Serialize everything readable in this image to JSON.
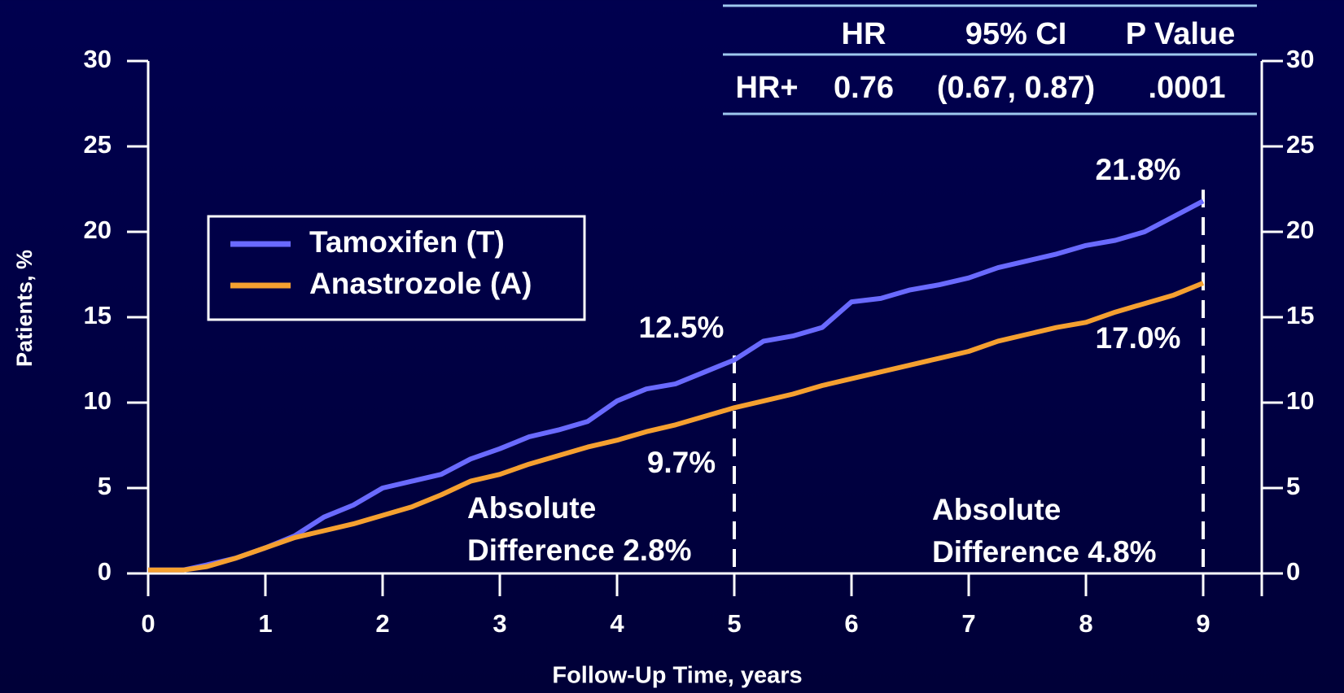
{
  "chart_data": {
    "type": "line",
    "x_label": "Follow-Up Time, years",
    "y_label": "Patients, %",
    "xlim": [
      0,
      9.5
    ],
    "xticks": [
      0,
      1,
      2,
      3,
      4,
      5,
      6,
      7,
      8,
      9
    ],
    "ylim": [
      0,
      30
    ],
    "yticks": [
      0,
      5,
      10,
      15,
      20,
      25,
      30
    ],
    "y2lim": [
      0,
      30
    ],
    "y2ticks": [
      0,
      5,
      10,
      15,
      20,
      25,
      30
    ],
    "x": [
      0,
      0.3,
      0.5,
      0.75,
      1,
      1.25,
      1.5,
      1.75,
      2,
      2.25,
      2.5,
      2.75,
      3,
      3.25,
      3.5,
      3.75,
      4,
      4.25,
      4.5,
      4.75,
      5,
      5.25,
      5.5,
      5.75,
      6,
      6.25,
      6.5,
      6.75,
      7,
      7.25,
      7.5,
      7.75,
      8,
      8.25,
      8.5,
      8.75,
      9
    ],
    "series": [
      {
        "name": "Tamoxifen (T)",
        "color": "#6a6aff",
        "values": [
          0.2,
          0.2,
          0.5,
          0.9,
          1.5,
          2.2,
          3.3,
          4.0,
          5.0,
          5.4,
          5.8,
          6.7,
          7.3,
          8.0,
          8.4,
          8.9,
          10.1,
          10.8,
          11.1,
          11.8,
          12.5,
          13.6,
          13.9,
          14.4,
          15.9,
          16.1,
          16.6,
          16.9,
          17.3,
          17.9,
          18.3,
          18.7,
          19.2,
          19.5,
          20.0,
          20.9,
          21.8
        ]
      },
      {
        "name": "Anastrozole (A)",
        "color": "#f5a030",
        "values": [
          0.2,
          0.2,
          0.4,
          0.9,
          1.5,
          2.1,
          2.5,
          2.9,
          3.4,
          3.9,
          4.6,
          5.4,
          5.8,
          6.4,
          6.9,
          7.4,
          7.8,
          8.3,
          8.7,
          9.2,
          9.7,
          10.1,
          10.5,
          11.0,
          11.4,
          11.8,
          12.2,
          12.6,
          13.0,
          13.6,
          14.0,
          14.4,
          14.7,
          15.3,
          15.8,
          16.3,
          17.0
        ]
      }
    ],
    "legend": "upper left",
    "reference_lines_x": [
      5,
      9
    ],
    "annotations": [
      {
        "lines": [
          "12.5%"
        ]
      },
      {
        "lines": [
          "9.7%"
        ]
      },
      {
        "lines": [
          "21.8%"
        ]
      },
      {
        "lines": [
          "17.0%"
        ]
      },
      {
        "lines": [
          "Absolute",
          "Difference 2.8%"
        ]
      },
      {
        "lines": [
          "Absolute",
          "Difference 4.8%"
        ]
      }
    ],
    "table": {
      "header": [
        "HR",
        "95% CI",
        "P Value"
      ],
      "row": [
        "HR+",
        "0.76",
        "(0.67, 0.87)",
        ".0001"
      ]
    }
  }
}
